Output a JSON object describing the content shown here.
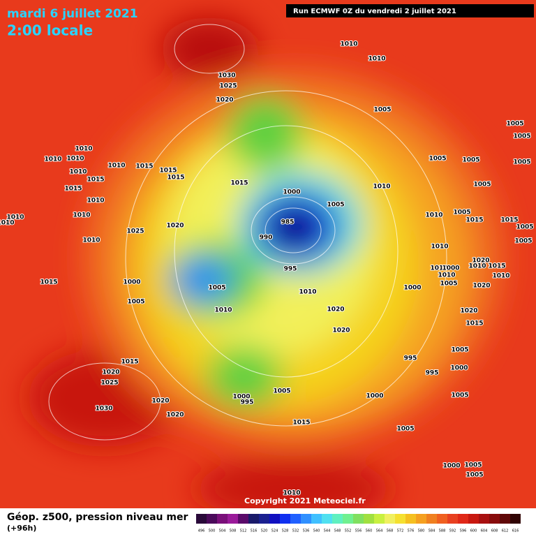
{
  "header": {
    "date": "mardi 6 juillet 2021",
    "time": "2:00 locale",
    "run": "Run ECMWF 0Z du vendredi 2 juillet 2021"
  },
  "map": {
    "isobar_labels": [
      "1010",
      "1010",
      "1030",
      "1025",
      "1020",
      "1005",
      "1005",
      "1005",
      "1010",
      "1010",
      "1010",
      "1010",
      "1015",
      "1015",
      "1015",
      "1005",
      "1005",
      "1005",
      "1010",
      "1015",
      "1015",
      "1010",
      "1000",
      "1005",
      "1015",
      "1010",
      "1010",
      "1010",
      "1010",
      "1005",
      "1005",
      "1010",
      "1015",
      "1015",
      "1005",
      "1025",
      "1020",
      "985",
      "990",
      "1010",
      "1010",
      "1005",
      "1020",
      "1015",
      "1010",
      "1000",
      "1010",
      "995",
      "1010",
      "1010",
      "1005",
      "1020",
      "1015",
      "1000",
      "1005",
      "1000",
      "1010",
      "1005",
      "1010",
      "1020",
      "1020",
      "1020",
      "1015",
      "995",
      "1005",
      "1000",
      "995",
      "1015",
      "1020",
      "1025",
      "1005",
      "1000",
      "995",
      "1000",
      "1020",
      "1030",
      "1020",
      "1005",
      "1015",
      "1005",
      "1000",
      "1005",
      "1010",
      "1005"
    ],
    "copyright": "Copyright 2021 Meteociel.fr"
  },
  "footer": {
    "title": "Géop. z500, pression niveau mer",
    "lead": "(+96h)",
    "scale_labels": [
      496,
      500,
      504,
      508,
      512,
      516,
      520,
      524,
      528,
      532,
      536,
      540,
      544,
      548,
      552,
      556,
      560,
      564,
      568,
      572,
      576,
      580,
      584,
      588,
      592,
      596,
      600,
      604,
      608,
      612,
      616
    ]
  }
}
